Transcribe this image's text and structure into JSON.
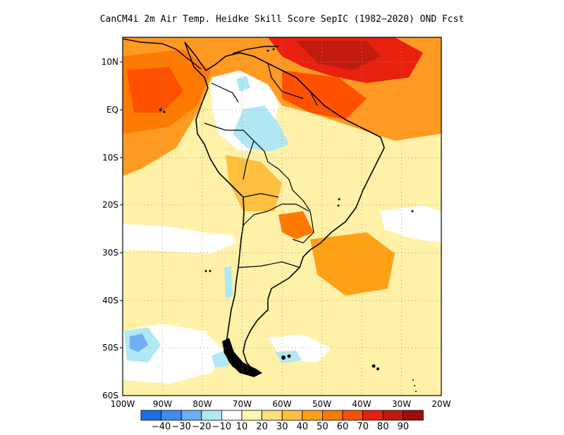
{
  "title": "CanCM4i  2m Air Temp. Heidke Skill Score SepIC (1982−2020) OND Fcst",
  "map": {
    "lon_range": [
      -100,
      -20
    ],
    "lat_range": [
      -60,
      15
    ],
    "lat_ticks": [
      "10N",
      "EQ",
      "10S",
      "20S",
      "30S",
      "40S",
      "50S",
      "60S"
    ],
    "lon_ticks": [
      "100W",
      "90W",
      "80W",
      "70W",
      "60W",
      "50W",
      "40W",
      "30W",
      "20W"
    ],
    "grid": "dotted",
    "background_color": "#fff1a8"
  },
  "colorbar": {
    "labels": [
      "−40",
      "−30",
      "−20",
      "−10",
      "10",
      "20",
      "30",
      "40",
      "50",
      "60",
      "70",
      "80",
      "90"
    ],
    "colors": [
      "#1e6fe6",
      "#3c8ef0",
      "#6fb0f5",
      "#b0e8f4",
      "#ffffff",
      "#fff7b0",
      "#ffe07a",
      "#ffc040",
      "#ffa114",
      "#ff7a00",
      "#ff5000",
      "#e8200e",
      "#c21a0f",
      "#9c0d0d"
    ]
  },
  "regions": [
    {
      "name": "tropical-warm-band",
      "color": "#ff8a1a"
    },
    {
      "name": "caribbean-hotspot",
      "color": "#d9300e"
    },
    {
      "name": "amazon-cool-patch",
      "color": "#b0e8f4"
    },
    {
      "name": "southern-pacific-white",
      "color": "#ffffff"
    }
  ]
}
